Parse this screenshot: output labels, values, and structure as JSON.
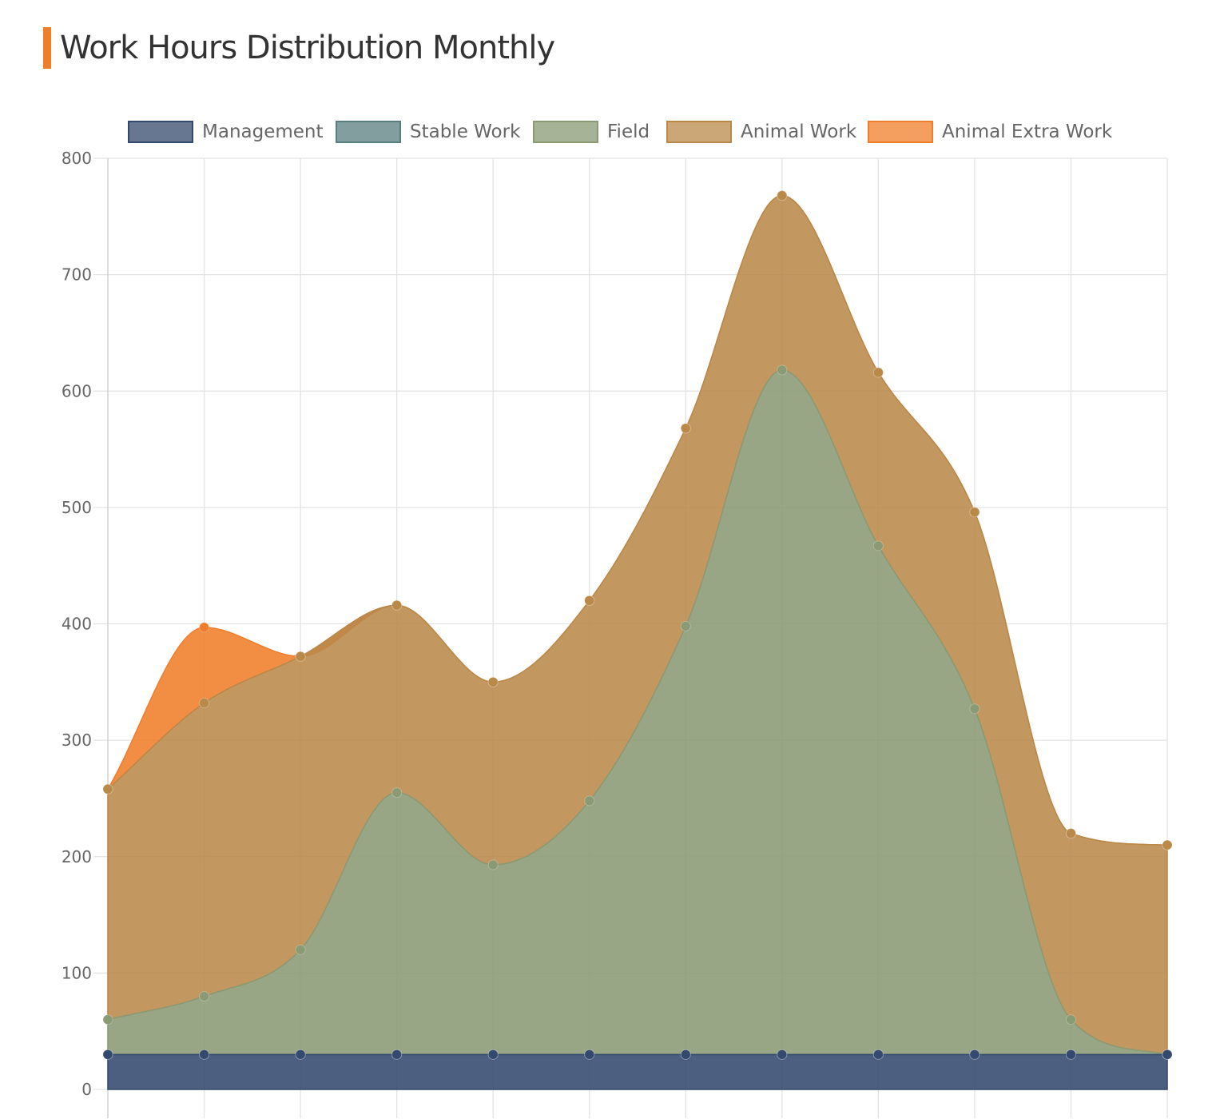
{
  "title": "Work Hours Distribution Monthly",
  "chart_data": {
    "type": "area",
    "title": "Work Hours Distribution Monthly",
    "xlabel": "",
    "ylabel": "",
    "ylim": [
      0,
      800
    ],
    "yticks": [
      0,
      100,
      200,
      300,
      400,
      500,
      600,
      700,
      800
    ],
    "grid": true,
    "legend": "top",
    "stacked": true,
    "x_count": 12,
    "series": [
      {
        "name": "Management",
        "color": "#34496e",
        "values": [
          30,
          30,
          30,
          30,
          30,
          30,
          30,
          30,
          30,
          30,
          30,
          30
        ]
      },
      {
        "name": "Stable Work",
        "color": "#5a7e7f",
        "values": [
          0,
          0,
          0,
          0,
          0,
          0,
          0,
          0,
          0,
          0,
          0,
          0
        ]
      },
      {
        "name": "Field",
        "color": "#8a9a74",
        "values": [
          30,
          50,
          90,
          225,
          163,
          218,
          368,
          588,
          437,
          297,
          30,
          0
        ]
      },
      {
        "name": "Animal Work",
        "color": "#b9894a",
        "values": [
          198,
          252,
          252,
          161,
          157,
          172,
          170,
          150,
          149,
          169,
          160,
          180
        ]
      },
      {
        "name": "Animal Extra Work",
        "color": "#f07d2a",
        "values": [
          0,
          65,
          0,
          0,
          0,
          0,
          0,
          0,
          0,
          0,
          0,
          0
        ]
      }
    ]
  }
}
